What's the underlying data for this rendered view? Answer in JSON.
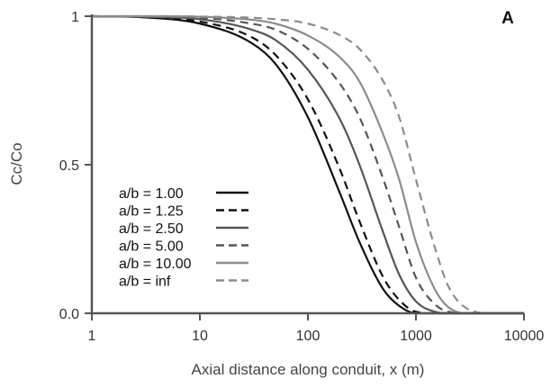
{
  "chart_data": {
    "type": "line",
    "panel_label": "A",
    "title": "",
    "xlabel": "Axial distance along conduit, x (m)",
    "ylabel": "Cc/Co",
    "xscale": "log",
    "xlim": [
      1,
      10000
    ],
    "ylim": [
      0,
      1
    ],
    "xticks": [
      1,
      10,
      100,
      1000,
      10000
    ],
    "xtick_labels": [
      "1",
      "10",
      "100",
      "1000",
      "10000"
    ],
    "yticks": [
      0,
      0.5,
      1
    ],
    "ytick_labels": [
      "0.0",
      "0.5",
      "1"
    ],
    "grid": false,
    "legend_position": "center-left",
    "x": [
      1,
      3,
      10,
      30,
      50,
      100,
      200,
      300,
      500,
      700,
      1000,
      1500,
      2000,
      3000,
      5000,
      10000
    ],
    "series": [
      {
        "name": "a/b = 1.00",
        "color": "#111111",
        "dash": "solid",
        "values": [
          1.0,
          0.996,
          0.975,
          0.91,
          0.84,
          0.66,
          0.4,
          0.24,
          0.08,
          0.025,
          0.0,
          0.0,
          0.0,
          0.0,
          0.0,
          0.0
        ]
      },
      {
        "name": "a/b = 1.25",
        "color": "#111111",
        "dash": "dashed",
        "values": [
          1.0,
          0.997,
          0.982,
          0.93,
          0.87,
          0.72,
          0.48,
          0.31,
          0.12,
          0.045,
          0.005,
          0.0,
          0.0,
          0.0,
          0.0,
          0.0
        ]
      },
      {
        "name": "a/b = 2.50",
        "color": "#555555",
        "dash": "solid",
        "values": [
          1.0,
          0.998,
          0.99,
          0.955,
          0.92,
          0.82,
          0.65,
          0.5,
          0.27,
          0.13,
          0.04,
          0.005,
          0.0,
          0.0,
          0.0,
          0.0
        ]
      },
      {
        "name": "a/b = 5.00",
        "color": "#555555",
        "dash": "dashed",
        "values": [
          1.0,
          0.999,
          0.995,
          0.975,
          0.955,
          0.89,
          0.77,
          0.66,
          0.45,
          0.29,
          0.12,
          0.03,
          0.005,
          0.0,
          0.0,
          0.0
        ]
      },
      {
        "name": "a/b = 10.00",
        "color": "#8c8c8c",
        "dash": "solid",
        "values": [
          1.0,
          1.0,
          0.998,
          0.988,
          0.975,
          0.935,
          0.86,
          0.78,
          0.6,
          0.45,
          0.24,
          0.08,
          0.02,
          0.0,
          0.0,
          0.0
        ]
      },
      {
        "name": "a/b = inf",
        "color": "#8c8c8c",
        "dash": "dashed",
        "values": [
          1.0,
          1.0,
          0.999,
          0.995,
          0.99,
          0.975,
          0.935,
          0.89,
          0.78,
          0.66,
          0.45,
          0.22,
          0.09,
          0.015,
          0.0,
          0.0
        ]
      }
    ]
  }
}
